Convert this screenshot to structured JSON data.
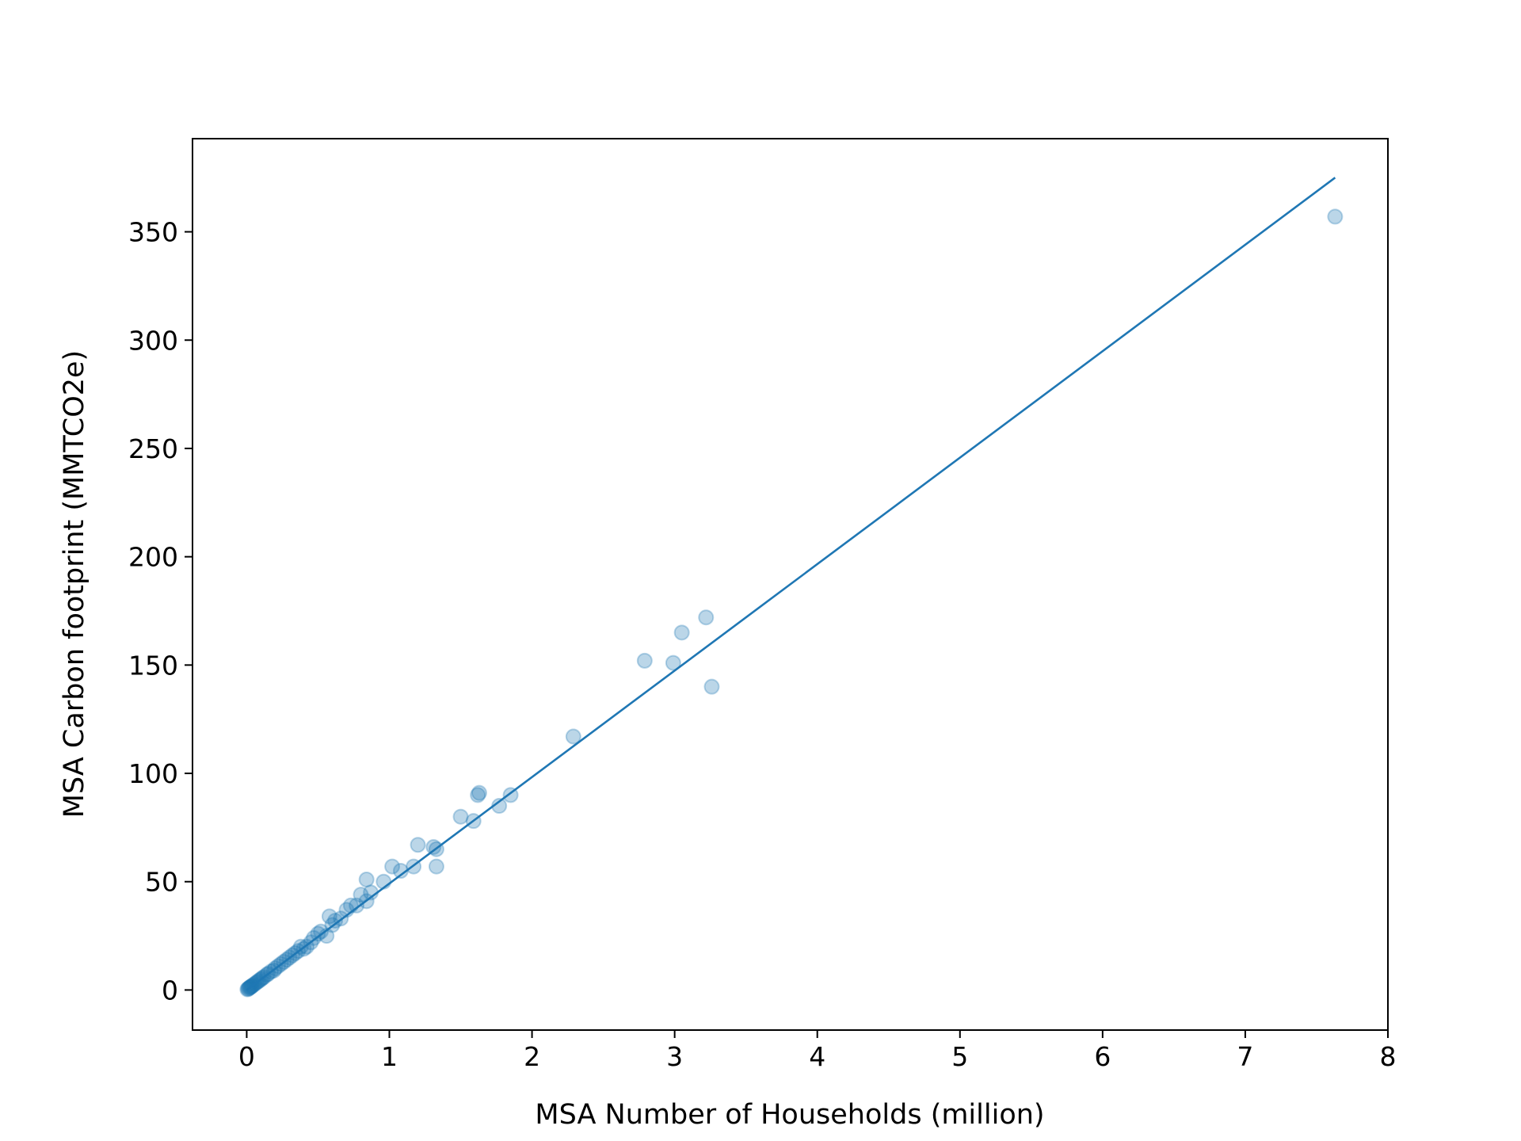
{
  "chart_data": {
    "type": "scatter",
    "title": "",
    "xlabel": "MSA Number of Households (million)",
    "ylabel": "MSA Carbon footprint (MMTCO2e)",
    "xlim": [
      -0.38,
      8.0
    ],
    "ylim": [
      -18.5,
      393
    ],
    "xticks": [
      "0",
      "1",
      "2",
      "3",
      "4",
      "5",
      "6",
      "7",
      "8"
    ],
    "yticks": [
      "0",
      "50",
      "100",
      "150",
      "200",
      "250",
      "300",
      "350"
    ],
    "grid": false,
    "legend": "none",
    "colors": {
      "series": "#1f77b4",
      "axes": "#000000"
    },
    "series": [
      {
        "kind": "scatter",
        "x": [
          7.63,
          3.22,
          3.05,
          2.79,
          2.99,
          3.26,
          2.29,
          1.85,
          1.77,
          1.62,
          1.63,
          1.59,
          1.5,
          1.33,
          1.31,
          1.33,
          1.2,
          1.17,
          1.08,
          1.02,
          0.96,
          0.87,
          0.84,
          0.8,
          0.84,
          0.77,
          0.73,
          0.7,
          0.66,
          0.62,
          0.6,
          0.56,
          0.58,
          0.52,
          0.5,
          0.47,
          0.45,
          0.42,
          0.4,
          0.38,
          0.36,
          0.34,
          0.32,
          0.3,
          0.28,
          0.26,
          0.24,
          0.22,
          0.2,
          0.19,
          0.17,
          0.15,
          0.14,
          0.12,
          0.11,
          0.1,
          0.09,
          0.08,
          0.07,
          0.06,
          0.05,
          0.04,
          0.035,
          0.03,
          0.025,
          0.02,
          0.015,
          0.01,
          0.005
        ],
        "y": [
          357,
          172,
          165,
          152,
          151,
          140,
          117,
          90,
          85,
          90,
          91,
          78,
          80,
          57,
          66,
          65,
          67,
          57,
          55,
          57,
          50,
          45,
          51,
          44,
          41,
          39,
          39,
          37,
          33,
          32,
          30,
          25,
          34,
          27,
          26,
          24,
          22,
          20,
          19,
          20,
          18,
          17,
          16,
          15,
          14,
          13,
          12,
          11,
          10,
          9,
          8.5,
          7.5,
          7,
          6,
          5.5,
          5,
          4.5,
          4,
          3.5,
          3,
          2.5,
          2,
          1.8,
          1.5,
          1.3,
          1.1,
          0.8,
          0.5,
          0.3
        ]
      },
      {
        "kind": "line",
        "x": [
          0,
          7.63
        ],
        "y": [
          0,
          375
        ]
      }
    ]
  }
}
